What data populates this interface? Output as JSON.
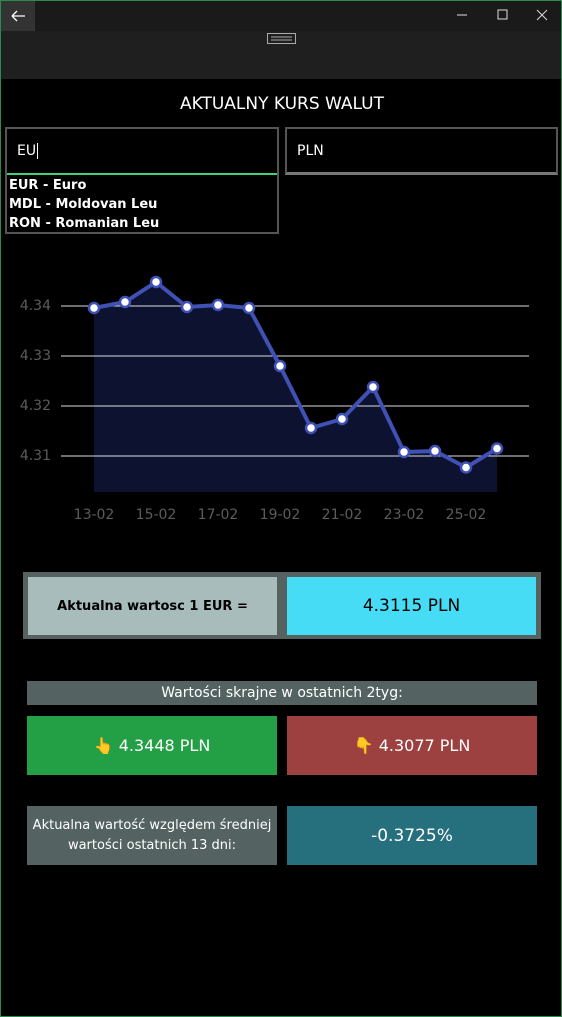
{
  "header": {
    "title": "AKTUALNY KURS WALUT"
  },
  "search": {
    "from_input": "EU",
    "suggestions": [
      "EUR - Euro",
      "MDL - Moldovan Leu",
      "RON - Romanian Leu"
    ],
    "to_input": "PLN"
  },
  "chart_data": {
    "type": "line",
    "categories": [
      "13-02",
      null,
      "15-02",
      null,
      "17-02",
      null,
      "19-02",
      null,
      "21-02",
      null,
      "23-02",
      null,
      "25-02",
      null
    ],
    "values": [
      4.3396,
      4.3408,
      4.3448,
      4.3398,
      4.3402,
      4.3396,
      4.328,
      4.3156,
      4.3174,
      4.3238,
      4.3108,
      4.311,
      4.3077,
      4.3115
    ],
    "color": "#3f51b5",
    "area_color": "#0c1230",
    "ylim": [
      4.3028,
      4.349
    ],
    "yticks": [
      4.31,
      4.32,
      4.33,
      4.34
    ],
    "grid": true
  },
  "current": {
    "label": "Aktualna wartosc 1 EUR =",
    "value": "4.3115 PLN"
  },
  "extremes": {
    "title": "Wartości skrajne w ostatnich 2tyg:",
    "max_icon": "👆",
    "max": "4.3448 PLN",
    "min_icon": "👇",
    "min": "4.3077 PLN"
  },
  "average": {
    "label": "Aktualna wartość względem średniej wartości ostatnich 13 dni:",
    "value": "-0.3725%"
  }
}
